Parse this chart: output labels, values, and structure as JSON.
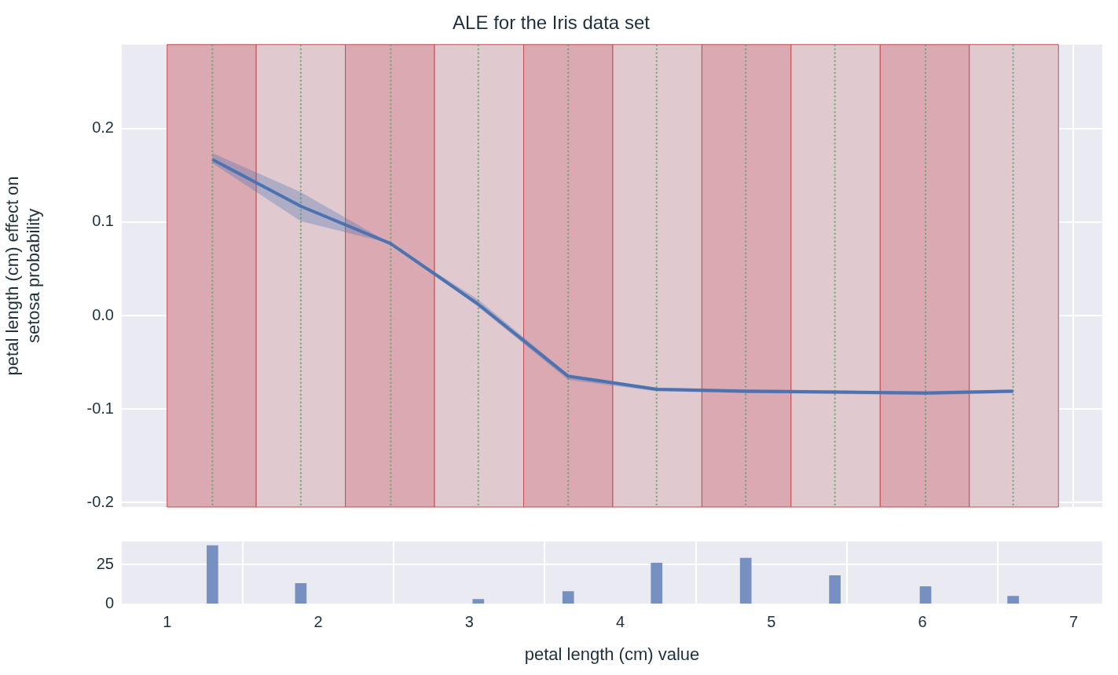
{
  "chart_data": [
    {
      "type": "line",
      "title": "ALE for the Iris data set",
      "ylabel": "petal length (cm) effect on\nsetosa probability",
      "xlim": [
        0.7,
        7.19
      ],
      "xticks": [
        1,
        2,
        3,
        4,
        5,
        6,
        7
      ],
      "ylim": [
        -0.205,
        0.29
      ],
      "yticks": [
        -0.2,
        -0.1,
        {
          "value": 0,
          "label": "0.0"
        },
        0.1,
        0.2
      ],
      "grid": true,
      "tick_labels": "y",
      "series": [
        {
          "color": "#4c72b0",
          "x": [
            1.3,
            1.885,
            2.48,
            3.06,
            3.655,
            4.24,
            4.83,
            5.42,
            6.02,
            6.6
          ],
          "values": [
            0.167,
            0.117,
            0.077,
            0.012,
            -0.065,
            -0.079,
            -0.081,
            -0.082,
            -0.083,
            -0.081
          ],
          "lower": [
            0.163,
            0.101,
            0.077,
            0.009,
            -0.069,
            -0.081,
            -0.083,
            -0.084,
            -0.085,
            -0.083
          ],
          "upper": [
            0.174,
            0.132,
            0.077,
            0.017,
            -0.063,
            -0.077,
            -0.079,
            -0.08,
            -0.081,
            -0.079
          ]
        }
      ],
      "bands": [
        {
          "axis": "x",
          "from": 1.0,
          "to": 1.59,
          "color": "#dba9b1"
        },
        {
          "axis": "x",
          "from": 1.59,
          "to": 2.18,
          "color": "#e1c9d0"
        },
        {
          "axis": "x",
          "from": 2.18,
          "to": 2.77,
          "color": "#dba9b1"
        },
        {
          "axis": "x",
          "from": 2.77,
          "to": 3.36,
          "color": "#e1c9d0"
        },
        {
          "axis": "x",
          "from": 3.36,
          "to": 3.95,
          "color": "#dba9b1"
        },
        {
          "axis": "x",
          "from": 3.95,
          "to": 4.54,
          "color": "#e1c9d0"
        },
        {
          "axis": "x",
          "from": 4.54,
          "to": 5.13,
          "color": "#dba9b1"
        },
        {
          "axis": "x",
          "from": 5.13,
          "to": 5.72,
          "color": "#e1c9d0"
        },
        {
          "axis": "x",
          "from": 5.72,
          "to": 6.31,
          "color": "#dba9b1"
        },
        {
          "axis": "x",
          "from": 6.31,
          "to": 6.9,
          "color": "#e1c9d0"
        }
      ],
      "ref_lines": [
        {
          "axis": "x",
          "value": 1.3,
          "color": "#6aa56f",
          "line_style": "dotted"
        },
        {
          "axis": "x",
          "value": 1.885,
          "color": "#6aa56f",
          "line_style": "dotted"
        },
        {
          "axis": "x",
          "value": 2.48,
          "color": "#6aa56f",
          "line_style": "dotted"
        },
        {
          "axis": "x",
          "value": 3.06,
          "color": "#6aa56f",
          "line_style": "dotted"
        },
        {
          "axis": "x",
          "value": 3.655,
          "color": "#6aa56f",
          "line_style": "dotted"
        },
        {
          "axis": "x",
          "value": 4.24,
          "color": "#6aa56f",
          "line_style": "dotted"
        },
        {
          "axis": "x",
          "value": 4.83,
          "color": "#6aa56f",
          "line_style": "dotted"
        },
        {
          "axis": "x",
          "value": 5.42,
          "color": "#6aa56f",
          "line_style": "dotted"
        },
        {
          "axis": "x",
          "value": 6.02,
          "color": "#6aa56f",
          "line_style": "dotted"
        },
        {
          "axis": "x",
          "value": 6.6,
          "color": "#6aa56f",
          "line_style": "dotted"
        }
      ]
    },
    {
      "type": "bar",
      "xlabel": "petal length (cm) value",
      "x": [
        1.3,
        1.885,
        3.06,
        3.655,
        4.24,
        4.83,
        5.42,
        6.02,
        6.6
      ],
      "values": [
        37,
        13,
        3,
        8,
        26,
        29,
        18,
        11,
        5
      ],
      "color": "#7690c2",
      "xlim": [
        0.7,
        7.19
      ],
      "xticks": [
        1,
        2,
        3,
        4,
        5,
        6,
        7
      ],
      "ylim": [
        0,
        39.5
      ],
      "yticks": [
        0,
        25
      ],
      "grid": true
    }
  ]
}
